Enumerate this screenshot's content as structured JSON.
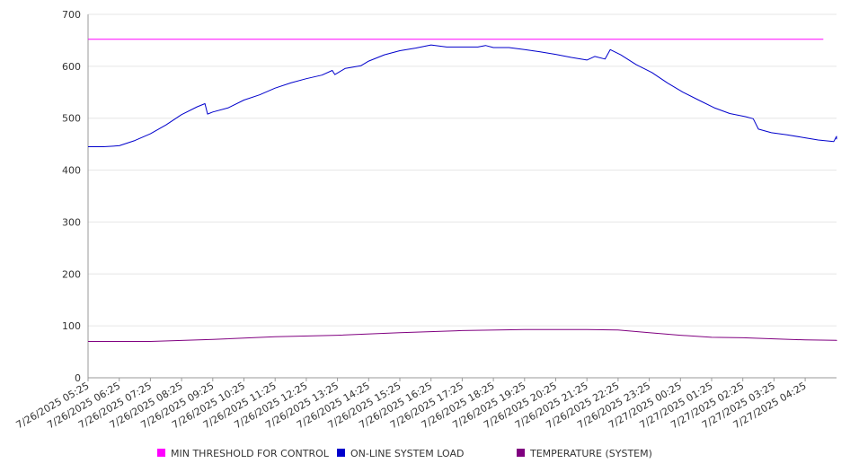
{
  "chart_data": {
    "type": "line",
    "ylim": [
      0,
      700
    ],
    "y_ticks": [
      0,
      100,
      200,
      300,
      400,
      500,
      600,
      700
    ],
    "grid": {
      "horizontal": true,
      "vertical": false
    },
    "legend_placement": "bottom",
    "x_start": "2025-07-26 05:25",
    "x_end": "2025-07-27 05:00",
    "x_tick_labels": [
      "7/26/2025 05:25",
      "7/26/2025 06:25",
      "7/26/2025 07:25",
      "7/26/2025 08:25",
      "7/26/2025 09:25",
      "7/26/2025 10:25",
      "7/26/2025 11:25",
      "7/26/2025 12:25",
      "7/26/2025 13:25",
      "7/26/2025 14:25",
      "7/26/2025 15:25",
      "7/26/2025 16:25",
      "7/26/2025 17:25",
      "7/26/2025 18:25",
      "7/26/2025 19:25",
      "7/26/2025 20:25",
      "7/26/2025 21:25",
      "7/26/2025 22:25",
      "7/26/2025 23:25",
      "7/27/2025 00:25",
      "7/27/2025 01:25",
      "7/27/2025 02:25",
      "7/27/2025 03:25",
      "7/27/2025 04:25"
    ],
    "series": [
      {
        "name": "MIN THRESHOLD FOR CONTROL",
        "color": "#ff00ff",
        "points": [
          [
            "2025-07-26 05:25",
            652
          ],
          [
            "2025-07-27 05:00",
            652
          ]
        ]
      },
      {
        "name": "ON-LINE SYSTEM LOAD",
        "color": "#0000cc",
        "points": [
          [
            "2025-07-26 05:25",
            445
          ],
          [
            "2025-07-26 05:55",
            445
          ],
          [
            "2025-07-26 06:25",
            447
          ],
          [
            "2025-07-26 06:55",
            457
          ],
          [
            "2025-07-26 07:25",
            470
          ],
          [
            "2025-07-26 07:55",
            487
          ],
          [
            "2025-07-26 08:25",
            507
          ],
          [
            "2025-07-26 08:55",
            522
          ],
          [
            "2025-07-26 09:10",
            528
          ],
          [
            "2025-07-26 09:15",
            508
          ],
          [
            "2025-07-26 09:25",
            512
          ],
          [
            "2025-07-26 09:55",
            520
          ],
          [
            "2025-07-26 10:25",
            535
          ],
          [
            "2025-07-26 10:55",
            545
          ],
          [
            "2025-07-26 11:25",
            558
          ],
          [
            "2025-07-26 11:55",
            568
          ],
          [
            "2025-07-26 12:25",
            576
          ],
          [
            "2025-07-26 12:55",
            583
          ],
          [
            "2025-07-26 13:15",
            592
          ],
          [
            "2025-07-26 13:20",
            584
          ],
          [
            "2025-07-26 13:40",
            596
          ],
          [
            "2025-07-26 14:10",
            601
          ],
          [
            "2025-07-26 14:25",
            610
          ],
          [
            "2025-07-26 14:55",
            622
          ],
          [
            "2025-07-26 15:25",
            630
          ],
          [
            "2025-07-26 15:55",
            635
          ],
          [
            "2025-07-26 16:25",
            641
          ],
          [
            "2025-07-26 16:55",
            637
          ],
          [
            "2025-07-26 17:25",
            637
          ],
          [
            "2025-07-26 17:55",
            637
          ],
          [
            "2025-07-26 18:10",
            640
          ],
          [
            "2025-07-26 18:25",
            636
          ],
          [
            "2025-07-26 18:55",
            636
          ],
          [
            "2025-07-26 19:25",
            632
          ],
          [
            "2025-07-26 19:55",
            628
          ],
          [
            "2025-07-26 20:25",
            623
          ],
          [
            "2025-07-26 20:55",
            617
          ],
          [
            "2025-07-26 21:25",
            612
          ],
          [
            "2025-07-26 21:40",
            619
          ],
          [
            "2025-07-26 22:00",
            614
          ],
          [
            "2025-07-26 22:10",
            632
          ],
          [
            "2025-07-26 22:30",
            622
          ],
          [
            "2025-07-26 23:00",
            603
          ],
          [
            "2025-07-26 23:30",
            588
          ],
          [
            "2025-07-27 00:00",
            568
          ],
          [
            "2025-07-27 00:30",
            550
          ],
          [
            "2025-07-27 01:00",
            535
          ],
          [
            "2025-07-27 01:30",
            520
          ],
          [
            "2025-07-27 02:00",
            509
          ],
          [
            "2025-07-27 02:30",
            503
          ],
          [
            "2025-07-27 02:45",
            499
          ],
          [
            "2025-07-27 02:55",
            479
          ],
          [
            "2025-07-27 03:20",
            472
          ],
          [
            "2025-07-27 03:50",
            468
          ],
          [
            "2025-07-27 04:20",
            463
          ],
          [
            "2025-07-27 04:50",
            458
          ],
          [
            "2025-07-27 05:20",
            455
          ],
          [
            "2025-07-27 05:35",
            465
          ],
          [
            "2025-07-27 06:00",
            465
          ],
          [
            "2025-07-27 06:20",
            460
          ],
          [
            "2025-07-27 06:45",
            460
          ],
          [
            "2025-07-27 07:00",
            462
          ]
        ]
      },
      {
        "name": "TEMPERATURE (SYSTEM)",
        "color": "#800080",
        "points": [
          [
            "2025-07-26 05:25",
            70
          ],
          [
            "2025-07-26 07:25",
            70
          ],
          [
            "2025-07-26 09:25",
            74
          ],
          [
            "2025-07-26 11:25",
            79
          ],
          [
            "2025-07-26 13:25",
            82
          ],
          [
            "2025-07-26 15:25",
            87
          ],
          [
            "2025-07-26 17:25",
            91
          ],
          [
            "2025-07-26 19:25",
            93
          ],
          [
            "2025-07-26 21:25",
            93
          ],
          [
            "2025-07-26 22:25",
            92
          ],
          [
            "2025-07-26 23:25",
            87
          ],
          [
            "2025-07-27 00:25",
            82
          ],
          [
            "2025-07-27 01:25",
            78
          ],
          [
            "2025-07-27 02:25",
            77
          ],
          [
            "2025-07-27 03:25",
            75
          ],
          [
            "2025-07-27 04:25",
            73
          ],
          [
            "2025-07-27 05:25",
            72
          ],
          [
            "2025-07-27 06:25",
            72
          ],
          [
            "2025-07-27 07:00",
            71
          ]
        ]
      }
    ]
  },
  "legend": {
    "items": [
      {
        "label": "MIN THRESHOLD FOR CONTROL",
        "color": "#ff00ff"
      },
      {
        "label": "ON-LINE SYSTEM LOAD",
        "color": "#0000cc"
      },
      {
        "label": "TEMPERATURE (SYSTEM)",
        "color": "#800080"
      }
    ]
  }
}
